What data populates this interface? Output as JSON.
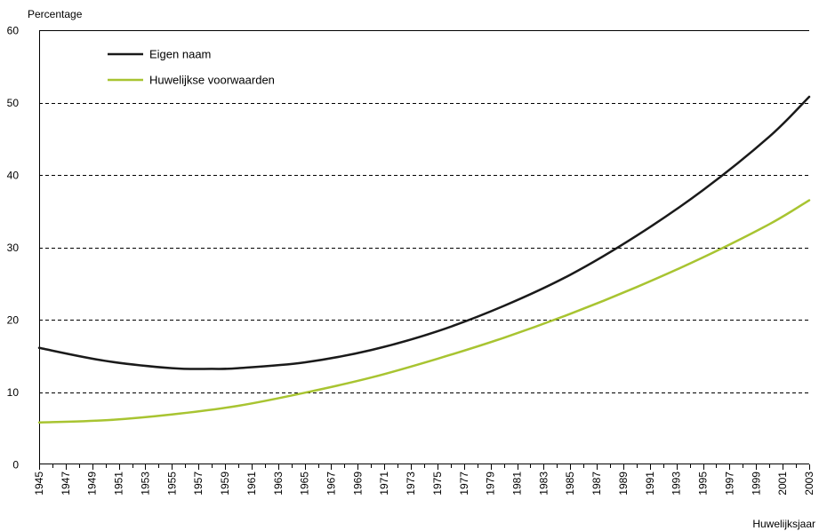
{
  "chart_data": {
    "type": "line",
    "ylabel": "Percentage",
    "xlabel": "Huwelijksjaar",
    "ylim": [
      0,
      60
    ],
    "yticks": [
      "0",
      "10",
      "20",
      "30",
      "40",
      "50",
      "60"
    ],
    "xlim": [
      1945,
      2003
    ],
    "xticks": [
      "1945",
      "1947",
      "1949",
      "1951",
      "1953",
      "1955",
      "1957",
      "1959",
      "1961",
      "1963",
      "1965",
      "1967",
      "1969",
      "1971",
      "1973",
      "1975",
      "1977",
      "1979",
      "1981",
      "1983",
      "1985",
      "1987",
      "1989",
      "1991",
      "1993",
      "1995",
      "1997",
      "1999",
      "2001",
      "2003"
    ],
    "grid": "horizontal dashed",
    "legend_position": "top-left",
    "series": [
      {
        "name": "Eigen naam",
        "color": "#1a1a1a",
        "x": [
          1945,
          1950,
          1955,
          1958,
          1960,
          1965,
          1970,
          1975,
          1980,
          1985,
          1990,
          1995,
          2000,
          2003
        ],
        "values": [
          16.1,
          14.3,
          13.3,
          13.2,
          13.3,
          14.1,
          15.8,
          18.4,
          21.9,
          26.2,
          31.6,
          37.9,
          45.3,
          50.8
        ]
      },
      {
        "name": "Huwelijkse voorwaarden",
        "color": "#a8c431",
        "x": [
          1945,
          1950,
          1955,
          1960,
          1965,
          1970,
          1975,
          1980,
          1985,
          1990,
          1995,
          2000,
          2003
        ],
        "values": [
          5.8,
          6.1,
          6.9,
          8.1,
          9.9,
          12.0,
          14.6,
          17.5,
          20.8,
          24.5,
          28.6,
          33.2,
          36.5
        ]
      }
    ]
  }
}
